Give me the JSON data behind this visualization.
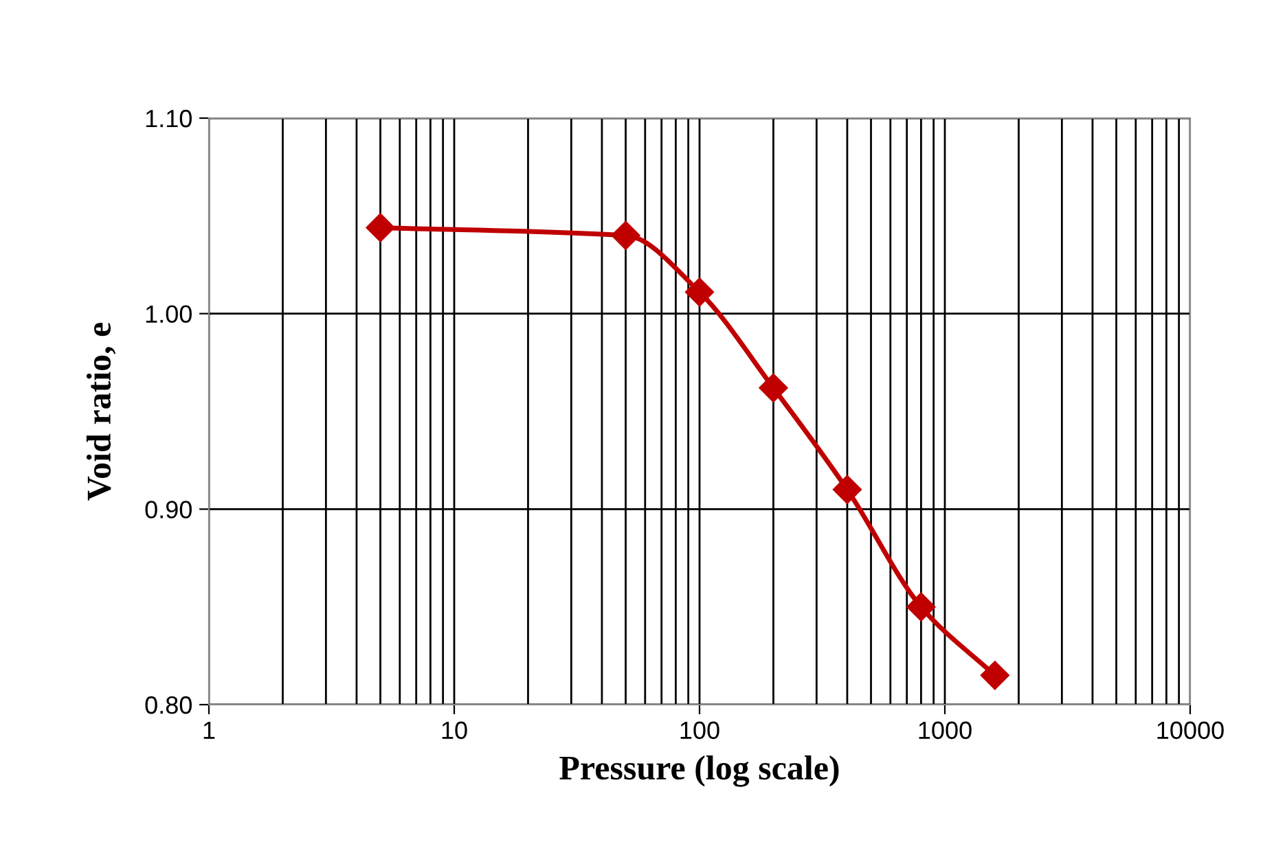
{
  "chart_data": {
    "type": "line",
    "xlabel": "Pressure (log scale)",
    "ylabel": "Void ratio, e",
    "x": [
      5,
      50,
      100,
      200,
      400,
      800,
      1600
    ],
    "series": [
      {
        "color": "#c00000",
        "values": [
          1.044,
          1.04,
          1.011,
          0.962,
          0.91,
          0.85,
          0.815
        ]
      }
    ],
    "log": "x",
    "xlim": [
      1,
      10000
    ],
    "xticks": [
      1,
      10,
      100,
      1000,
      10000
    ],
    "ylim": [
      0.8,
      1.1
    ],
    "yticks": [
      {
        "value": 0.8,
        "label": "0.80"
      },
      {
        "value": 0.9,
        "label": "0.90"
      },
      {
        "value": 1.0,
        "label": "1.00"
      },
      {
        "value": 1.1,
        "label": "1.10"
      }
    ],
    "grid": true,
    "marker": "diamond",
    "line_style": "solid",
    "legend": false
  }
}
